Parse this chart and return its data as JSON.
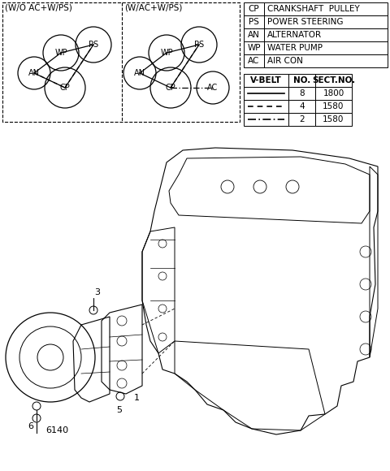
{
  "bg_color": "#ffffff",
  "legend_abbrevs": [
    [
      "CP",
      "CRANKSHAFT  PULLEY"
    ],
    [
      "PS",
      "POWER STEERING"
    ],
    [
      "AN",
      "ALTERNATOR"
    ],
    [
      "WP",
      "WATER PUMP"
    ],
    [
      "AC",
      "AIR CON"
    ]
  ],
  "vbelt_table": [
    {
      "no": "8",
      "sect": "1800"
    },
    {
      "no": "4",
      "sect": "1580"
    },
    {
      "no": "2",
      "sect": "1580"
    }
  ],
  "diagram1_label": "(W/O AC+W/PS)",
  "diagram2_label": "(W/AC+W/PS)"
}
